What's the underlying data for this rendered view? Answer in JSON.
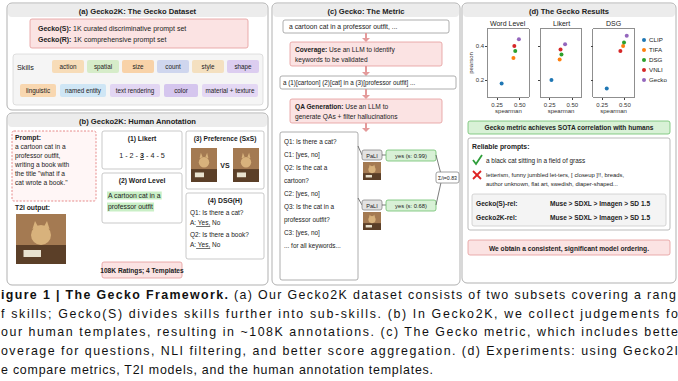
{
  "panels": {
    "a": {
      "title": "(a) Gecko2K: The Gecko Dataset",
      "subsets": [
        {
          "name": "Gecko(S):",
          "text": "1K curated discriminative prompt set"
        },
        {
          "name": "Gecko(R):",
          "text": "1K comprehensive prompt set"
        }
      ],
      "skills_label": "Skills",
      "skills": [
        [
          "action",
          "spatial",
          "size",
          "count",
          "style",
          "shape"
        ],
        [
          "linguistic",
          "named entity",
          "text rendering",
          "color",
          "material + texture"
        ]
      ]
    },
    "b": {
      "title": "(b) Gecko2K: Human Annotation",
      "prompt_label": "Prompt:",
      "prompt_lines": [
        "a cartoon cat in a",
        "professor outfit,",
        "writing a book with",
        "the title \"what if a",
        "cat wrote a book.\""
      ],
      "output_label": "T2I output:",
      "likert": {
        "title": "(1) Likert",
        "scale": [
          "1",
          "2",
          "3",
          "4",
          "5"
        ],
        "separator": " - ",
        "selected": "3"
      },
      "word_level": {
        "title": "(2) Word Level",
        "lines": [
          "A cartoon cat in a",
          "professor outfit"
        ]
      },
      "preference": {
        "title": "(3) Preference (SxS)",
        "vs": "VS"
      },
      "dsg": {
        "title": "(4) DSG(H)",
        "items": [
          {
            "q": "Q1: Is there a cat?",
            "answer": [
              "A:",
              "Yes,",
              "No"
            ]
          },
          {
            "q": "Q2: Is there a book?",
            "answer": [
              "A:",
              "Yes,",
              "No"
            ]
          }
        ]
      },
      "summary": "108K Ratings; 4 Templates"
    },
    "c": {
      "title": "(c) Gecko: The Metric",
      "prompt": "a cartoon cat in a professor outfit, ...",
      "coverage": {
        "label": "Coverage:",
        "lines": [
          "Use an LLM to identify",
          "keywords to be validated"
        ]
      },
      "keywords": "a (1)[cartoon] (2)[cat] in a (3)[professor outfit] ...",
      "qa_generation": {
        "label": "QA Generation:",
        "lines": [
          "Use an LLM to",
          "generate QAs + filter hallucinations"
        ]
      },
      "qa_lines": [
        "Q1: Is there a cat?",
        "C1: [yes, no]",
        "Q2: Is the cat a",
        "cartoon?",
        "C2: [yes, no]",
        "Q3: Is the cat in a",
        "professor outfit?",
        "C3: [yes, no]",
        "... for all keywords..."
      ],
      "vqa_model": "PaLI",
      "answers": [
        "yes (s: 0.99)",
        "yes (s: 0.68)"
      ],
      "aggregate": "Σ/i=0.83"
    },
    "d": {
      "title": "(d) The Gecko Results",
      "result": "Gecko metric achieves SOTA correlation with humans",
      "reliable_label": "Reliable prompts:",
      "good_prompt": "a black cat sitting in a field of grass",
      "bad_prompt_lines": [
        "letterism, funny jumbled let-ters, [ closeup ]!!, breads,",
        "author unknown, flat art, swedish, diaper-shaped..."
      ],
      "orderings": [
        {
          "name": "Gecko(S)-rel:",
          "text": "Muse > SDXL > Imagen > SD 1.5"
        },
        {
          "name": "Gecko2K-rel:",
          "text": "Muse > SDXL > Imagen > SD 1.5"
        }
      ],
      "conclusion": "We obtain a consistent, significant model ordering."
    }
  },
  "chart_data": [
    {
      "type": "scatter",
      "title": "Word Level",
      "xlabel": "spearman",
      "ylabel": "pearson",
      "xlim": [
        0.15,
        0.6
      ],
      "xticks": [
        0.25,
        {
          "value": 0.5,
          "label": "0.50"
        }
      ],
      "ylim": [
        0.1,
        0.5
      ],
      "yticks": [
        0.2,
        0.4
      ],
      "series": [
        {
          "color": "#1f77b4",
          "x": [
            0.3
          ],
          "values": [
            0.18
          ]
        },
        {
          "color": "#ff7f0e",
          "x": [
            0.43
          ],
          "values": [
            0.33
          ]
        },
        {
          "color": "#2ca02c",
          "x": [
            0.45
          ],
          "values": [
            0.37
          ]
        },
        {
          "color": "#d62728",
          "x": [
            0.44
          ],
          "values": [
            0.4
          ]
        },
        {
          "color": "#9467bd",
          "x": [
            0.49
          ],
          "values": [
            0.44
          ]
        }
      ]
    },
    {
      "type": "scatter",
      "title": "Likert",
      "xlabel": "spearman",
      "tick_labels": "x",
      "xlim": [
        0.15,
        0.6
      ],
      "xticks": [
        0.25,
        {
          "value": 0.5,
          "label": "0.50"
        }
      ],
      "ylim": [
        0.1,
        0.5
      ],
      "yticks": [
        0.2,
        0.4
      ],
      "series": [
        {
          "color": "#1f77b4",
          "x": [
            0.27
          ],
          "values": [
            0.2
          ]
        },
        {
          "color": "#ff7f0e",
          "x": [
            0.36
          ],
          "values": [
            0.32
          ]
        },
        {
          "color": "#2ca02c",
          "x": [
            0.38
          ],
          "values": [
            0.35
          ]
        },
        {
          "color": "#d62728",
          "x": [
            0.37
          ],
          "values": [
            0.38
          ]
        },
        {
          "color": "#9467bd",
          "x": [
            0.42
          ],
          "values": [
            0.41
          ]
        }
      ]
    },
    {
      "type": "scatter",
      "title": "DSG",
      "xlabel": "spearman",
      "tick_labels": "x",
      "legend": "right",
      "xlim": [
        0.15,
        0.6
      ],
      "xticks": [
        0.25,
        {
          "value": 0.5,
          "label": "0.50"
        }
      ],
      "ylim": [
        0.1,
        0.5
      ],
      "yticks": [
        0.2,
        0.4
      ],
      "series": [
        {
          "name": "CLIP",
          "color": "#1f77b4",
          "x": [
            0.3
          ],
          "values": [
            0.15
          ]
        },
        {
          "name": "TIFA",
          "color": "#ff7f0e",
          "x": [
            0.48
          ],
          "values": [
            0.4
          ]
        },
        {
          "name": "DSG",
          "color": "#2ca02c",
          "x": [
            0.49
          ],
          "values": [
            0.42
          ]
        },
        {
          "name": "VNLI",
          "color": "#d62728",
          "x": [
            0.45
          ],
          "values": [
            0.37
          ]
        },
        {
          "name": "Gecko",
          "color": "#9467bd",
          "x": [
            0.52
          ],
          "values": [
            0.46
          ]
        }
      ]
    }
  ],
  "caption": {
    "label": "igure 1 | The Gecko Framework.",
    "lines": [
      "(a) Our Gecko2K dataset consists of two subsets covering a rang",
      "f skills; Gecko(S) divides skills further into sub-skills. (b) In Gecko2K, we collect judgements fo",
      "our human templates, resulting in ~108K annotations. (c) The Gecko metric, which includes bette",
      "overage for questions, NLI filtering, and better score aggregation. (d) Experiments: using Gecko2I",
      "e compare metrics, T2I models, and the human annotation templates."
    ]
  }
}
